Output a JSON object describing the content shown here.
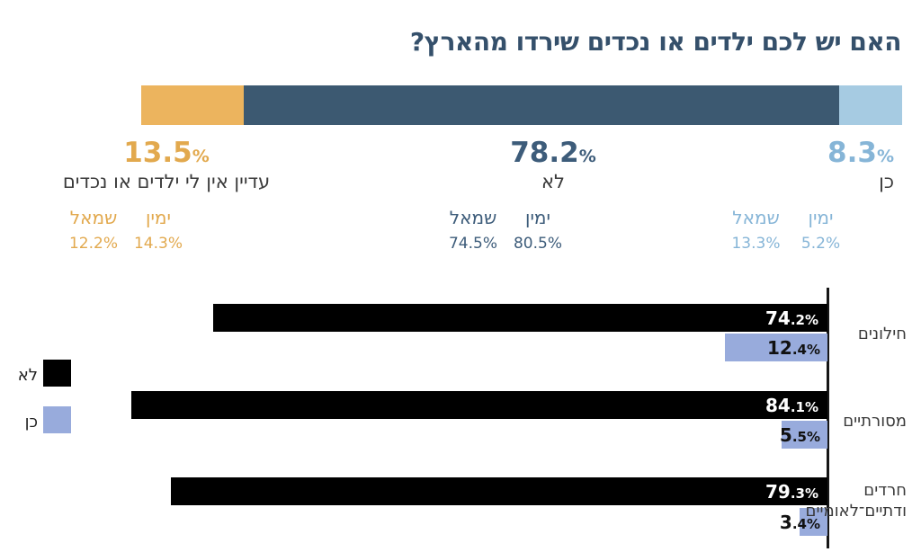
{
  "percent_sign": "%",
  "chart_data": [
    {
      "type": "stacked-bar",
      "title": "האם יש לכם ילדים או נכדים שירדו מהארץ?",
      "unit": "%",
      "xlim": [
        0,
        100
      ],
      "segments": [
        {
          "label": "עדיין אין לי ילדים או נכדים",
          "value": 13.5,
          "breakdown": {
            "right": 14.3,
            "left": 12.2
          },
          "bar_color": "#ECB45E",
          "text_color": "#E2A94E"
        },
        {
          "label": "לא",
          "value": 78.2,
          "breakdown": {
            "right": 80.5,
            "left": 74.5
          },
          "bar_color": "#3C5971",
          "text_color": "#3D5C7A"
        },
        {
          "label": "כן",
          "value": 8.3,
          "breakdown": {
            "right": 5.2,
            "left": 13.3
          },
          "bar_color": "#A6CBE2",
          "text_color": "#86B5D7"
        }
      ],
      "breakdown_headers": {
        "right": "ימין",
        "left": "שמאל"
      }
    },
    {
      "type": "bar",
      "orientation": "horizontal-rtl",
      "categories": [
        "חילונים",
        "מסורתיים",
        "חרדים ודתיים־לאומיים"
      ],
      "series": [
        {
          "name": "לא",
          "color": "#000000",
          "values": [
            74.2,
            84.1,
            79.3
          ]
        },
        {
          "name": "כן",
          "color": "#98ABDC",
          "values": [
            12.4,
            5.5,
            3.4
          ]
        }
      ],
      "value_suffix": "%",
      "xlim": [
        0,
        100
      ],
      "legend_position": "left",
      "grid": false
    }
  ]
}
